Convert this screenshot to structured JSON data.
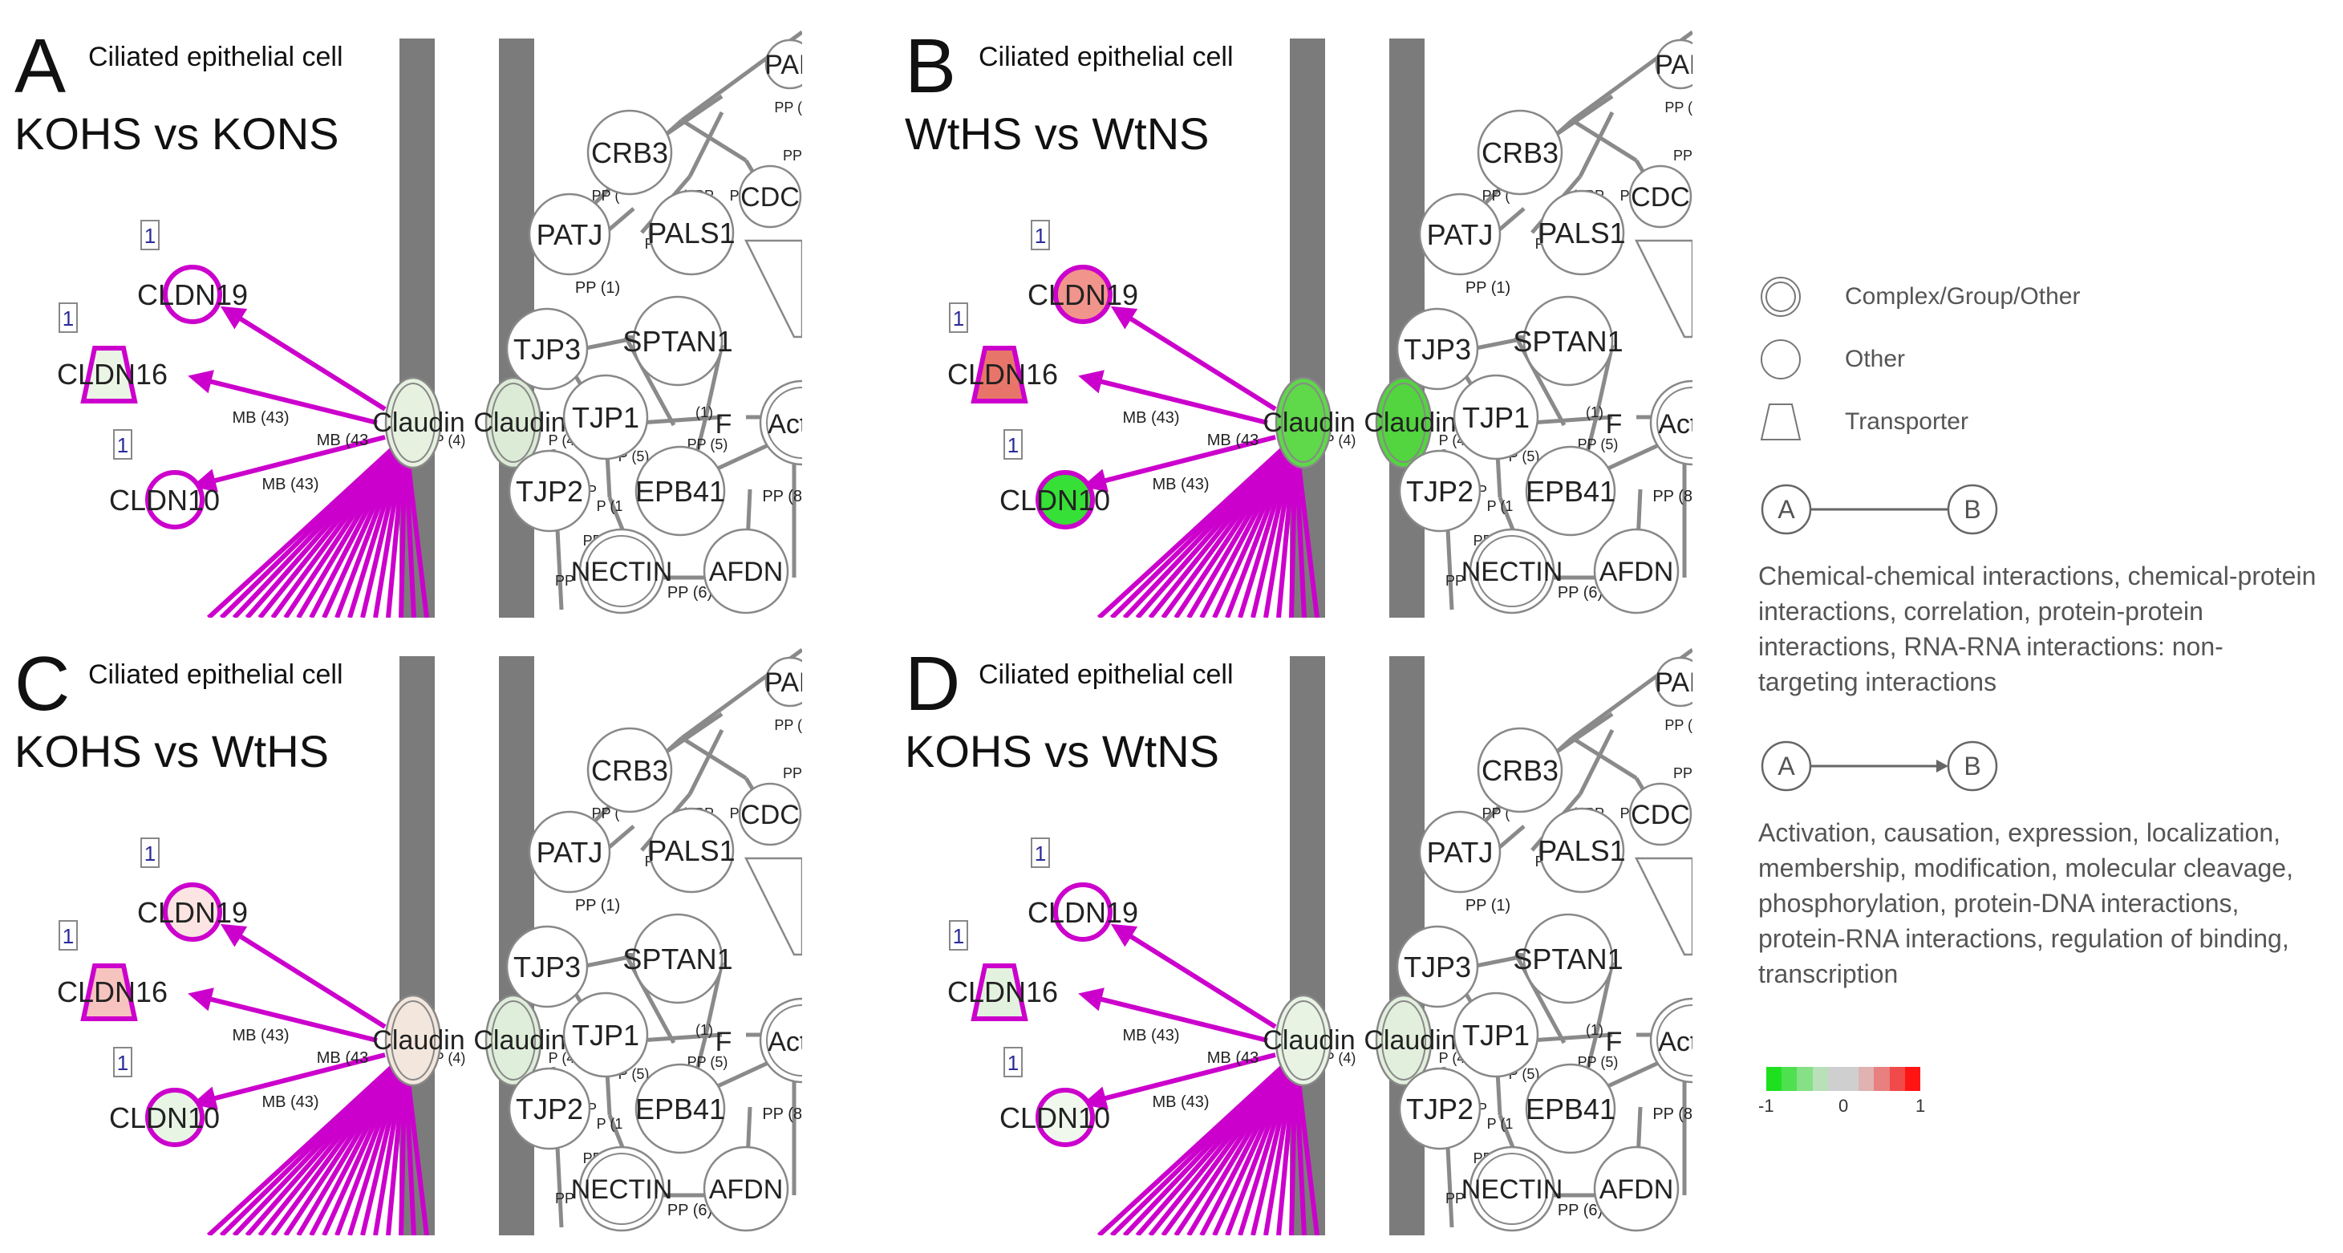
{
  "panels": [
    {
      "letter": "A",
      "cell_label": "Ciliated epithelial cell",
      "comparison": "KOHS vs KONS",
      "colors": {
        "cldn19": "#ffffff",
        "cldn16": "#eaf5e6",
        "cldn10": "#ffffff",
        "claudin_a": "#e6f1e0",
        "claudin_b": "#dcebd6"
      }
    },
    {
      "letter": "B",
      "cell_label": "Ciliated epithelial cell",
      "comparison": "WtHS vs WtNS",
      "colors": {
        "cldn19": "#f0948c",
        "cldn16": "#e8756a",
        "cldn10": "#36e036",
        "claudin_a": "#5fd84a",
        "claudin_b": "#52d53e"
      }
    },
    {
      "letter": "C",
      "cell_label": "Ciliated epithelial cell",
      "comparison": "KOHS vs WtHS",
      "colors": {
        "cldn19": "#fbe4e2",
        "cldn16": "#f7c3bf",
        "cldn10": "#e8f5e5",
        "claudin_a": "#f3e6dc",
        "claudin_b": "#dfeeda"
      }
    },
    {
      "letter": "D",
      "cell_label": "Ciliated epithelial cell",
      "comparison": "KOHS vs WtNS",
      "colors": {
        "cldn19": "#ffffff",
        "cldn16": "#e3f2df",
        "cldn10": "#f0f8ee",
        "claudin_a": "#e8f3e4",
        "claudin_b": "#e2efdc"
      }
    }
  ],
  "nodes": {
    "cldn19": "CLDN19",
    "cldn16": "CLDN16",
    "cldn10": "CLDN10",
    "claudin": "Claudin",
    "pard": "PAF",
    "crb3": "CRB3",
    "cdc": "CDC",
    "patj": "PATJ",
    "pals1": "PALS1",
    "tjp3": "TJP3",
    "sptan1": "SPTAN1",
    "tjp1": "TJP1",
    "actin": "Actin",
    "f": "F",
    "tjp2": "TJP2",
    "epb41": "EPB41",
    "nectin": "NECTIN",
    "afdn": "AFDN"
  },
  "edges": {
    "mb43_trunc": "MB (43",
    "mb43": "MB (43)",
    "pp1": "PP (1)",
    "pp2": "PP (2)",
    "pp5": "PP (5)",
    "pp6": "PP (6)",
    "pp4": "PP (4)",
    "pp4_trunc": "P (4",
    "pp8": "PP (8",
    "pp_trunc": "PP (",
    "pp": "PP",
    "one_pp": "(1PP",
    "p3": "P (3",
    "small1": "(1)",
    "p5": "P (5)",
    "p_trunc": "P (1",
    "pp5b": "PP (5)"
  },
  "count_badge": "1",
  "legend": {
    "complex": "Complex/Group/Other",
    "other": "Other",
    "transporter": "Transporter",
    "node_a": "A",
    "node_b": "B",
    "nontargeting_text": "Chemical-chemical interactions, chemical-protein interactions, correlation, protein-protein interactions, RNA-RNA interactions: non-targeting interactions",
    "targeting_text": "Activation, causation, expression, localization, membership, modification, molecular cleavage, phosphorylation, protein-DNA interactions, protein-RNA interactions, regulation of binding, transcription",
    "scale_colors": [
      "#1ee01e",
      "#4fe04f",
      "#86e086",
      "#b9e0b9",
      "#cfcfcf",
      "#cfcfcf",
      "#e0b2b2",
      "#e88080",
      "#f04a4a",
      "#ff1414"
    ],
    "scale_min": "-1",
    "scale_mid": "0",
    "scale_max": "1"
  }
}
